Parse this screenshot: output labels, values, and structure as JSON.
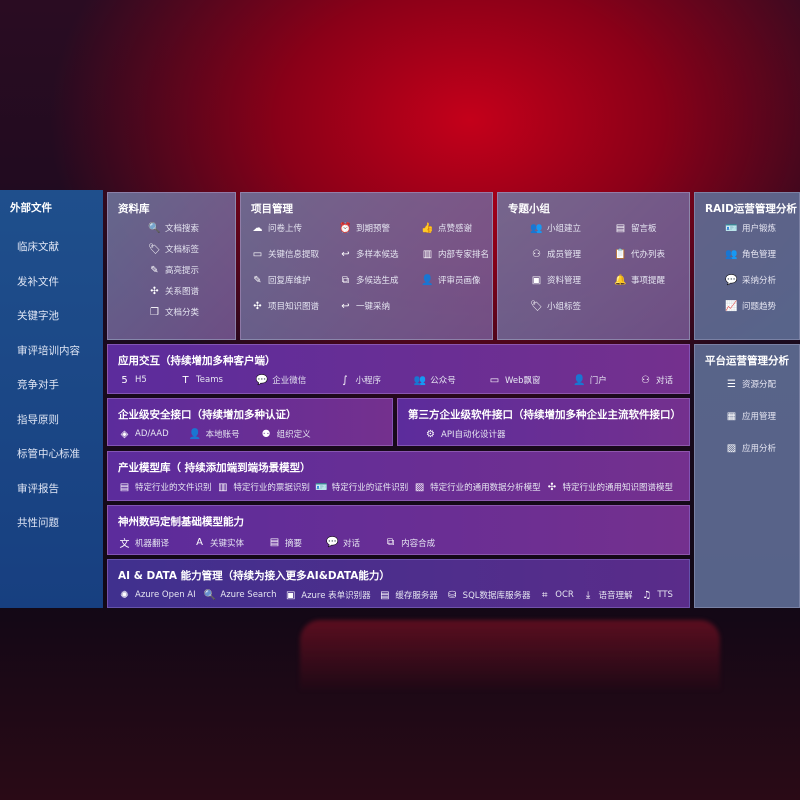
{
  "sidebar": {
    "title": "外部文件",
    "items": [
      "临床文献",
      "发补文件",
      "关键字池",
      "审评培训内容",
      "竞争对手",
      "指导原则",
      "标管中心标准",
      "审评报告",
      "共性问题"
    ]
  },
  "library": {
    "title": "资料库",
    "items": [
      {
        "label": "文档搜索",
        "icon": "doc-search"
      },
      {
        "label": "文档标签",
        "icon": "tag"
      },
      {
        "label": "高亮提示",
        "icon": "pen"
      },
      {
        "label": "关系图谱",
        "icon": "graph"
      },
      {
        "label": "文档分类",
        "icon": "doc-stack"
      }
    ]
  },
  "project": {
    "title": "项目管理",
    "items": [
      {
        "label": "问卷上传",
        "icon": "cloud-upload"
      },
      {
        "label": "到期预警",
        "icon": "alarm"
      },
      {
        "label": "点赞感谢",
        "icon": "thumbs-up"
      },
      {
        "label": "关键信息提取",
        "icon": "window"
      },
      {
        "label": "多样本候选",
        "icon": "reply"
      },
      {
        "label": "内部专家排名",
        "icon": "ranking"
      },
      {
        "label": "回复库维护",
        "icon": "pen"
      },
      {
        "label": "多候选生成",
        "icon": "puzzle"
      },
      {
        "label": "评审员画像",
        "icon": "person"
      },
      {
        "label": "项目知识图谱",
        "icon": "graph"
      },
      {
        "label": "一键采纳",
        "icon": "reply"
      }
    ]
  },
  "group": {
    "title": "专题小组",
    "items": [
      {
        "label": "小组建立",
        "icon": "users"
      },
      {
        "label": "留言板",
        "icon": "bbs"
      },
      {
        "label": "成员管理",
        "icon": "user-add"
      },
      {
        "label": "代办列表",
        "icon": "clipboard"
      },
      {
        "label": "资料管理",
        "icon": "folder"
      },
      {
        "label": "事项提醒",
        "icon": "bell"
      },
      {
        "label": "小组标签",
        "icon": "tag"
      }
    ]
  },
  "raid": {
    "title": "RAID运营管理分析",
    "items": [
      {
        "label": "用户锻炼",
        "icon": "id-card"
      },
      {
        "label": "角色管理",
        "icon": "users"
      },
      {
        "label": "采纳分析",
        "icon": "qa"
      },
      {
        "label": "问题趋势",
        "icon": "chart"
      }
    ]
  },
  "platform": {
    "title": "平台运营管理分析",
    "items": [
      {
        "label": "资源分配",
        "icon": "checklist"
      },
      {
        "label": "应用管理",
        "icon": "apps"
      },
      {
        "label": "应用分析",
        "icon": "analysis"
      }
    ]
  },
  "app": {
    "title": "应用交互（持续增加多种客户端）",
    "items": [
      {
        "label": "H5",
        "icon": "html5"
      },
      {
        "label": "Teams",
        "icon": "teams"
      },
      {
        "label": "企业微信",
        "icon": "wechat"
      },
      {
        "label": "小程序",
        "icon": "miniprogram"
      },
      {
        "label": "公众号",
        "icon": "users"
      },
      {
        "label": "Web飘窗",
        "icon": "window"
      },
      {
        "label": "门户",
        "icon": "person"
      },
      {
        "label": "对话",
        "icon": "chat-users"
      }
    ]
  },
  "security": {
    "title": "企业级安全接口（持续增加多种认证）",
    "items": [
      {
        "label": "AD/AAD",
        "icon": "diamond"
      },
      {
        "label": "本地账号",
        "icon": "user-gear"
      },
      {
        "label": "组织定义",
        "icon": "org"
      }
    ]
  },
  "thirdparty": {
    "title": "第三方企业级软件接口（持续增加多种企业主流软件接口）",
    "items": [
      {
        "label": "API自动化设计器",
        "icon": "gear"
      }
    ]
  },
  "industry": {
    "title": "产业模型库（ 持续添加端到端场景模型）",
    "items": [
      {
        "label": "特定行业的文件识别",
        "icon": "doc"
      },
      {
        "label": "特定行业的票据识别",
        "icon": "receipt"
      },
      {
        "label": "特定行业的证件识别",
        "icon": "id-card"
      },
      {
        "label": "特定行业的通用数据分析模型",
        "icon": "image"
      },
      {
        "label": "特定行业的通用知识图谱模型",
        "icon": "graph"
      }
    ]
  },
  "dcits": {
    "title": "神州数码定制基础模型能力",
    "items": [
      {
        "label": "机器翻译",
        "icon": "translate"
      },
      {
        "label": "关键实体",
        "icon": "entity"
      },
      {
        "label": "摘要",
        "icon": "doc"
      },
      {
        "label": "对话",
        "icon": "chat"
      },
      {
        "label": "内容合成",
        "icon": "puzzle"
      }
    ]
  },
  "aidata": {
    "title": "AI & DATA 能力管理（持续为接入更多AI&DATA能力）",
    "items": [
      {
        "label": "Azure Open AI",
        "icon": "openai"
      },
      {
        "label": "Azure Search",
        "icon": "doc-search"
      },
      {
        "label": "Azure 表单识别器",
        "icon": "form"
      },
      {
        "label": "缓存服务器",
        "icon": "cache"
      },
      {
        "label": "SQL数据库服务器",
        "icon": "database"
      },
      {
        "label": "OCR",
        "icon": "ocr"
      },
      {
        "label": "语音理解",
        "icon": "download"
      },
      {
        "label": "TTS",
        "icon": "tts"
      }
    ]
  }
}
